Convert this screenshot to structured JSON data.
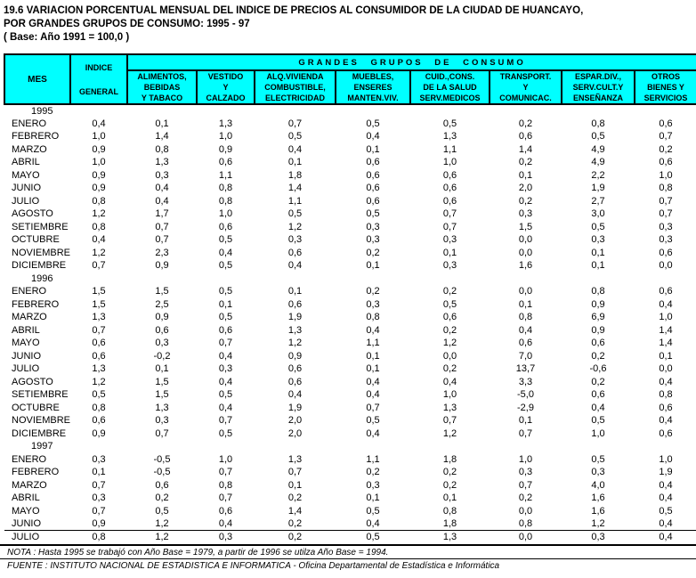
{
  "title": {
    "line1": "19.6 VARIACION PORCENTUAL MENSUAL DEL INDICE DE PRECIOS AL CONSUMIDOR DE LA CIUDAD DE HUANCAYO,",
    "line2": "POR GRANDES GRUPOS DE CONSUMO: 1995 - 97",
    "line3": "( Base: Año 1991 = 100,0 )"
  },
  "table": {
    "header": {
      "mes": "MES",
      "indice": [
        "INDICE",
        "GENERAL"
      ],
      "group_title": "GRANDES GRUPOS DE CONSUMO",
      "groups": [
        [
          "ALIMENTOS,",
          "BEBIDAS",
          "Y TABACO"
        ],
        [
          "VESTIDO",
          "Y",
          "CALZADO"
        ],
        [
          "ALQ.VIVIENDA",
          "COMBUSTIBLE,",
          "ELECTRICIDAD"
        ],
        [
          "MUEBLES,",
          "ENSERES",
          "MANTEN.VIV."
        ],
        [
          "CUID.,CONS.",
          "DE LA SALUD",
          "SERV.MEDICOS"
        ],
        [
          "TRANSPORT.",
          "Y",
          "COMUNICAC."
        ],
        [
          "ESPAR.DIV.,",
          "SERV.CULT.Y",
          "ENSEÑANZA"
        ],
        [
          "OTROS",
          "BIENES Y",
          "SERVICIOS"
        ]
      ]
    },
    "sections": [
      {
        "year": "1995",
        "rows": [
          {
            "mes": "ENERO",
            "values": [
              "0,4",
              "0,1",
              "1,3",
              "0,7",
              "0,5",
              "0,5",
              "0,2",
              "0,8",
              "0,6"
            ]
          },
          {
            "mes": "FEBRERO",
            "values": [
              "1,0",
              "1,4",
              "1,0",
              "0,5",
              "0,4",
              "1,3",
              "0,6",
              "0,5",
              "0,7"
            ]
          },
          {
            "mes": "MARZO",
            "values": [
              "0,9",
              "0,8",
              "0,9",
              "0,4",
              "0,1",
              "1,1",
              "1,4",
              "4,9",
              "0,2"
            ]
          },
          {
            "mes": "ABRIL",
            "values": [
              "1,0",
              "1,3",
              "0,6",
              "0,1",
              "0,6",
              "1,0",
              "0,2",
              "4,9",
              "0,6"
            ]
          },
          {
            "mes": "MAYO",
            "values": [
              "0,9",
              "0,3",
              "1,1",
              "1,8",
              "0,6",
              "0,6",
              "0,1",
              "2,2",
              "1,0"
            ]
          },
          {
            "mes": "JUNIO",
            "values": [
              "0,9",
              "0,4",
              "0,8",
              "1,4",
              "0,6",
              "0,6",
              "2,0",
              "1,9",
              "0,8"
            ]
          },
          {
            "mes": "JULIO",
            "values": [
              "0,8",
              "0,4",
              "0,8",
              "1,1",
              "0,6",
              "0,6",
              "0,2",
              "2,7",
              "0,7"
            ]
          },
          {
            "mes": "AGOSTO",
            "values": [
              "1,2",
              "1,7",
              "1,0",
              "0,5",
              "0,5",
              "0,7",
              "0,3",
              "3,0",
              "0,7"
            ]
          },
          {
            "mes": "SETIEMBRE",
            "values": [
              "0,8",
              "0,7",
              "0,6",
              "1,2",
              "0,3",
              "0,7",
              "1,5",
              "0,5",
              "0,3"
            ]
          },
          {
            "mes": "OCTUBRE",
            "values": [
              "0,4",
              "0,7",
              "0,5",
              "0,3",
              "0,3",
              "0,3",
              "0,0",
              "0,3",
              "0,3"
            ]
          },
          {
            "mes": "NOVIEMBRE",
            "values": [
              "1,2",
              "2,3",
              "0,4",
              "0,6",
              "0,2",
              "0,1",
              "0,0",
              "0,1",
              "0,6"
            ]
          },
          {
            "mes": "DICIEMBRE",
            "values": [
              "0,7",
              "0,9",
              "0,5",
              "0,4",
              "0,1",
              "0,3",
              "1,6",
              "0,1",
              "0,0"
            ]
          }
        ]
      },
      {
        "year": "1996",
        "rows": [
          {
            "mes": "ENERO",
            "values": [
              "1,5",
              "1,5",
              "0,5",
              "0,1",
              "0,2",
              "0,2",
              "0,0",
              "0,8",
              "0,6"
            ]
          },
          {
            "mes": "FEBRERO",
            "values": [
              "1,5",
              "2,5",
              "0,1",
              "0,6",
              "0,3",
              "0,5",
              "0,1",
              "0,9",
              "0,4"
            ]
          },
          {
            "mes": "MARZO",
            "values": [
              "1,3",
              "0,9",
              "0,5",
              "1,9",
              "0,8",
              "0,6",
              "0,8",
              "6,9",
              "1,0"
            ]
          },
          {
            "mes": "ABRIL",
            "values": [
              "0,7",
              "0,6",
              "0,6",
              "1,3",
              "0,4",
              "0,2",
              "0,4",
              "0,9",
              "1,4"
            ]
          },
          {
            "mes": "MAYO",
            "values": [
              "0,6",
              "0,3",
              "0,7",
              "1,2",
              "1,1",
              "1,2",
              "0,6",
              "0,6",
              "1,4"
            ]
          },
          {
            "mes": "JUNIO",
            "values": [
              "0,6",
              "-0,2",
              "0,4",
              "0,9",
              "0,1",
              "0,0",
              "7,0",
              "0,2",
              "0,1"
            ]
          },
          {
            "mes": "JULIO",
            "values": [
              "1,3",
              "0,1",
              "0,3",
              "0,6",
              "0,1",
              "0,2",
              "13,7",
              "-0,6",
              "0,0"
            ]
          },
          {
            "mes": "AGOSTO",
            "values": [
              "1,2",
              "1,5",
              "0,4",
              "0,6",
              "0,4",
              "0,4",
              "3,3",
              "0,2",
              "0,4"
            ]
          },
          {
            "mes": "SETIEMBRE",
            "values": [
              "0,5",
              "1,5",
              "0,5",
              "0,4",
              "0,4",
              "1,0",
              "-5,0",
              "0,6",
              "0,8"
            ]
          },
          {
            "mes": "OCTUBRE",
            "values": [
              "0,8",
              "1,3",
              "0,4",
              "1,9",
              "0,7",
              "1,3",
              "-2,9",
              "0,4",
              "0,6"
            ]
          },
          {
            "mes": "NOVIEMBRE",
            "values": [
              "0,6",
              "0,3",
              "0,7",
              "2,0",
              "0,5",
              "0,7",
              "0,1",
              "0,5",
              "0,4"
            ]
          },
          {
            "mes": "DICIEMBRE",
            "values": [
              "0,9",
              "0,7",
              "0,5",
              "2,0",
              "0,4",
              "1,2",
              "0,7",
              "1,0",
              "0,6"
            ]
          }
        ]
      },
      {
        "year": "1997",
        "rows": [
          {
            "mes": "ENERO",
            "values": [
              "0,3",
              "-0,5",
              "1,0",
              "1,3",
              "1,1",
              "1,8",
              "1,0",
              "0,5",
              "1,0"
            ]
          },
          {
            "mes": "FEBRERO",
            "values": [
              "0,1",
              "-0,5",
              "0,7",
              "0,7",
              "0,2",
              "0,2",
              "0,3",
              "0,3",
              "1,9"
            ]
          },
          {
            "mes": "MARZO",
            "values": [
              "0,7",
              "0,6",
              "0,8",
              "0,1",
              "0,3",
              "0,2",
              "0,7",
              "4,0",
              "0,4"
            ]
          },
          {
            "mes": "ABRIL",
            "values": [
              "0,3",
              "0,2",
              "0,7",
              "0,2",
              "0,1",
              "0,1",
              "0,2",
              "1,6",
              "0,4"
            ]
          },
          {
            "mes": "MAYO",
            "values": [
              "0,7",
              "0,5",
              "0,6",
              "1,4",
              "0,5",
              "0,8",
              "0,0",
              "1,6",
              "0,5"
            ]
          },
          {
            "mes": "JUNIO",
            "values": [
              "0,9",
              "1,2",
              "0,4",
              "0,2",
              "0,4",
              "1,8",
              "0,8",
              "1,2",
              "0,4"
            ]
          },
          {
            "mes": "JULIO",
            "values": [
              "0,8",
              "1,2",
              "0,3",
              "0,2",
              "0,5",
              "1,3",
              "0,0",
              "0,3",
              "0,4"
            ]
          }
        ]
      }
    ]
  },
  "footer": {
    "nota": "NOTA : Hasta 1995 se trabajó con Año Base = 1979, a partir de 1996 se utilza Año Base = 1994.",
    "fuente": "FUENTE : INSTITUTO NACIONAL DE ESTADISTICA E INFORMATICA - Oficina Departamental de Estadística e Informática"
  },
  "colors": {
    "header_bg": "#00FFFF",
    "border": "#000000",
    "text": "#000000",
    "page_bg": "#FFFFFF"
  }
}
